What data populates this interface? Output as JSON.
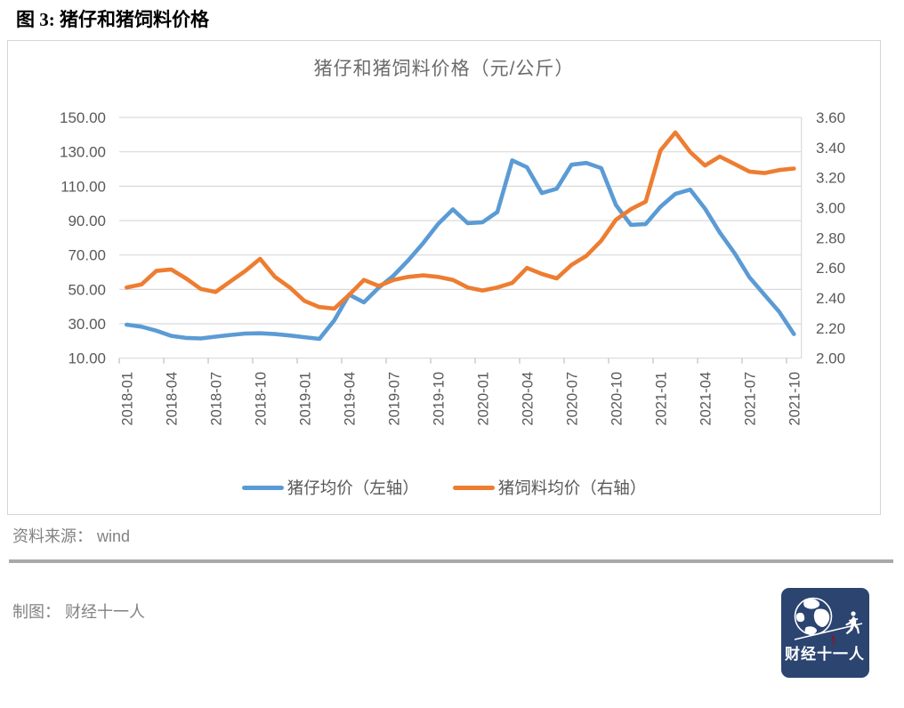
{
  "figure": {
    "caption": "图 3: 猪仔和猪饲料价格"
  },
  "chart": {
    "title": "猪仔和猪饲料价格（元/公斤）",
    "left_axis_ticks": [
      "150.00",
      "130.00",
      "110.00",
      "90.00",
      "70.00",
      "50.00",
      "30.00",
      "10.00"
    ],
    "right_axis_ticks": [
      "3.60",
      "3.40",
      "3.20",
      "3.00",
      "2.80",
      "2.60",
      "2.40",
      "2.20",
      "2.00"
    ],
    "x_axis_ticks": [
      "2018-01",
      "2018-04",
      "2018-07",
      "2018-10",
      "2019-01",
      "2019-04",
      "2019-07",
      "2019-10",
      "2020-01",
      "2020-04",
      "2020-07",
      "2020-10",
      "2021-01",
      "2021-04",
      "2021-07",
      "2021-10"
    ],
    "legend": [
      {
        "label": "猪仔均价（左轴）",
        "color": "#5B9BD5"
      },
      {
        "label": "猪饲料均价（右轴）",
        "color": "#ED7D31"
      }
    ],
    "colors": {
      "gridline": "#D9D9D9",
      "axis_text": "#595959",
      "tick": "#BFBFBF"
    }
  },
  "chart_data": {
    "type": "line",
    "x": [
      "2018-01",
      "2018-02",
      "2018-03",
      "2018-04",
      "2018-05",
      "2018-06",
      "2018-07",
      "2018-08",
      "2018-09",
      "2018-10",
      "2018-11",
      "2018-12",
      "2019-01",
      "2019-02",
      "2019-03",
      "2019-04",
      "2019-05",
      "2019-06",
      "2019-07",
      "2019-08",
      "2019-09",
      "2019-10",
      "2019-11",
      "2019-12",
      "2020-01",
      "2020-02",
      "2020-03",
      "2020-04",
      "2020-05",
      "2020-06",
      "2020-07",
      "2020-08",
      "2020-09",
      "2020-10",
      "2020-11",
      "2020-12",
      "2021-01",
      "2021-02",
      "2021-03",
      "2021-04",
      "2021-05",
      "2021-06",
      "2021-07",
      "2021-08",
      "2021-09",
      "2021-10"
    ],
    "series": [
      {
        "name": "猪仔均价（左轴）",
        "axis": "left",
        "color": "#5B9BD5",
        "values": [
          29.5,
          28.3,
          26.0,
          23.0,
          21.8,
          21.5,
          22.5,
          23.5,
          24.3,
          24.5,
          24.0,
          23.2,
          22.2,
          21.2,
          32.0,
          47.0,
          42.5,
          51.0,
          58.0,
          67.0,
          77.0,
          88.0,
          96.5,
          88.5,
          89.0,
          95.0,
          125.0,
          121.0,
          106.0,
          108.5,
          122.5,
          123.5,
          120.5,
          99.0,
          87.5,
          88.0,
          98.0,
          105.5,
          108.0,
          97.0,
          83.0,
          71.0,
          57.0,
          47.0,
          37.0,
          24.0
        ]
      },
      {
        "name": "猪饲料均价（右轴）",
        "axis": "right",
        "color": "#ED7D31",
        "values": [
          2.47,
          2.49,
          2.58,
          2.59,
          2.53,
          2.46,
          2.44,
          2.51,
          2.58,
          2.66,
          2.54,
          2.47,
          2.38,
          2.34,
          2.33,
          2.42,
          2.52,
          2.48,
          2.52,
          2.54,
          2.55,
          2.54,
          2.52,
          2.47,
          2.45,
          2.47,
          2.5,
          2.6,
          2.56,
          2.53,
          2.62,
          2.68,
          2.78,
          2.92,
          2.99,
          3.04,
          3.38,
          3.5,
          3.37,
          3.28,
          3.34,
          3.29,
          3.24,
          3.23,
          3.25,
          3.26
        ]
      }
    ],
    "title": "猪仔和猪饲料价格（元/公斤）",
    "xlabel": "",
    "ylabel_left": "元/公斤",
    "ylabel_right": "元/公斤",
    "left_ylim": [
      10,
      150
    ],
    "right_ylim": [
      2.0,
      3.6
    ],
    "grid": true,
    "legend_position": "bottom"
  },
  "footer": {
    "source": "资料来源： wind",
    "credit": "制图： 财经十一人"
  },
  "logo": {
    "text": "财经十一人",
    "bg": "#2B4470",
    "accent": "#C00000"
  }
}
